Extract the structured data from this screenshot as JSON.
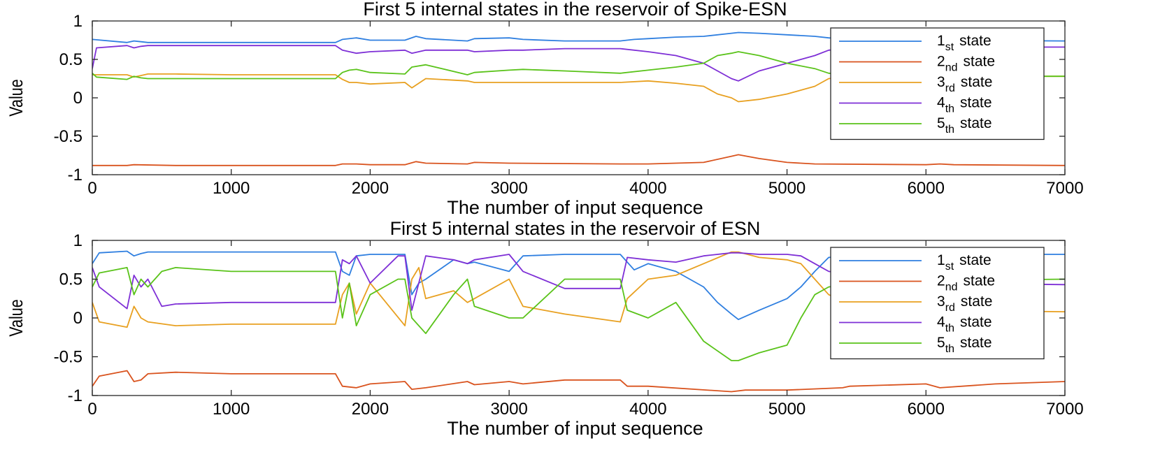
{
  "chart_data": [
    {
      "type": "line",
      "title": "First 5 internal states in the reservoir of Spike-ESN",
      "xlabel": "The number of input sequence",
      "ylabel": "Value",
      "xlim": [
        0,
        7000
      ],
      "ylim": [
        -1,
        1
      ],
      "xticks": [
        0,
        1000,
        2000,
        3000,
        4000,
        5000,
        6000,
        7000
      ],
      "yticks": [
        -1,
        -0.5,
        0,
        0.5,
        1
      ],
      "ytick_labels": [
        "-1",
        "-0.5",
        "0",
        "0.5",
        "1"
      ],
      "legend_position": "top-right",
      "grid": false,
      "series": [
        {
          "name": "1st state",
          "num": "1",
          "sub": "st",
          "word": "state",
          "color": "#2f7fe0",
          "x": [
            0,
            250,
            300,
            350,
            400,
            600,
            1000,
            1750,
            1800,
            1900,
            2000,
            2100,
            2250,
            2330,
            2400,
            2700,
            2750,
            3000,
            3100,
            3400,
            3800,
            3900,
            4000,
            4200,
            4400,
            4600,
            4650,
            4800,
            5000,
            5200,
            5300,
            5500,
            6000,
            7000
          ],
          "y": [
            0.76,
            0.72,
            0.74,
            0.73,
            0.72,
            0.72,
            0.72,
            0.72,
            0.76,
            0.78,
            0.75,
            0.75,
            0.75,
            0.8,
            0.77,
            0.74,
            0.77,
            0.78,
            0.76,
            0.74,
            0.74,
            0.76,
            0.77,
            0.79,
            0.8,
            0.84,
            0.85,
            0.84,
            0.82,
            0.8,
            0.78,
            0.76,
            0.75,
            0.74
          ]
        },
        {
          "name": "2nd state",
          "num": "2",
          "sub": "nd",
          "word": "state",
          "color": "#d9531e",
          "x": [
            0,
            250,
            300,
            600,
            1000,
            1750,
            1800,
            1900,
            2000,
            2250,
            2330,
            2400,
            2700,
            2750,
            3000,
            3800,
            4000,
            4400,
            4600,
            4650,
            4800,
            5000,
            5200,
            6000,
            6100,
            6200,
            7000
          ],
          "y": [
            -0.88,
            -0.88,
            -0.87,
            -0.88,
            -0.88,
            -0.88,
            -0.86,
            -0.86,
            -0.87,
            -0.87,
            -0.83,
            -0.85,
            -0.86,
            -0.84,
            -0.85,
            -0.86,
            -0.86,
            -0.84,
            -0.76,
            -0.74,
            -0.79,
            -0.84,
            -0.86,
            -0.87,
            -0.86,
            -0.87,
            -0.88
          ]
        },
        {
          "name": "3rd state",
          "num": "3",
          "sub": "rd",
          "word": "state",
          "color": "#e8a020",
          "x": [
            0,
            250,
            300,
            350,
            400,
            600,
            1000,
            1750,
            1800,
            1850,
            1900,
            2000,
            2250,
            2300,
            2400,
            2700,
            2750,
            3000,
            3100,
            3400,
            3800,
            4000,
            4200,
            4400,
            4500,
            4600,
            4650,
            4800,
            5000,
            5200,
            5300,
            5500,
            6000,
            7000
          ],
          "y": [
            0.3,
            0.3,
            0.27,
            0.29,
            0.31,
            0.31,
            0.3,
            0.3,
            0.24,
            0.2,
            0.2,
            0.18,
            0.2,
            0.13,
            0.25,
            0.22,
            0.2,
            0.2,
            0.2,
            0.2,
            0.2,
            0.22,
            0.19,
            0.15,
            0.05,
            0,
            -0.05,
            -0.02,
            0.05,
            0.15,
            0.25,
            0.28,
            0.28,
            0.28
          ]
        },
        {
          "name": "4th state",
          "num": "4",
          "sub": "th",
          "word": "state",
          "color": "#7e2fd6",
          "x": [
            0,
            30,
            250,
            300,
            350,
            400,
            600,
            1000,
            1750,
            1800,
            1850,
            1900,
            2000,
            2250,
            2300,
            2400,
            2700,
            2750,
            3000,
            3100,
            3400,
            3800,
            4000,
            4200,
            4300,
            4400,
            4500,
            4600,
            4650,
            4800,
            5000,
            5200,
            5300,
            5500,
            6000,
            7000
          ],
          "y": [
            0.38,
            0.65,
            0.68,
            0.65,
            0.67,
            0.68,
            0.68,
            0.68,
            0.68,
            0.62,
            0.6,
            0.58,
            0.6,
            0.62,
            0.58,
            0.62,
            0.62,
            0.6,
            0.62,
            0.62,
            0.64,
            0.64,
            0.6,
            0.55,
            0.5,
            0.45,
            0.35,
            0.25,
            0.22,
            0.35,
            0.45,
            0.55,
            0.62,
            0.65,
            0.66,
            0.66
          ]
        },
        {
          "name": "5th state",
          "num": "5",
          "sub": "th",
          "word": "state",
          "color": "#5ac31a",
          "x": [
            0,
            30,
            250,
            300,
            350,
            400,
            600,
            1000,
            1750,
            1800,
            1850,
            1900,
            2000,
            2250,
            2300,
            2400,
            2700,
            2750,
            3000,
            3100,
            3400,
            3800,
            4000,
            4200,
            4400,
            4500,
            4600,
            4650,
            4800,
            5000,
            5200,
            5300,
            5500,
            6000,
            7000
          ],
          "y": [
            0.32,
            0.27,
            0.24,
            0.28,
            0.26,
            0.25,
            0.25,
            0.25,
            0.25,
            0.33,
            0.36,
            0.37,
            0.33,
            0.31,
            0.4,
            0.43,
            0.3,
            0.33,
            0.36,
            0.37,
            0.35,
            0.32,
            0.36,
            0.4,
            0.45,
            0.55,
            0.58,
            0.6,
            0.55,
            0.45,
            0.38,
            0.32,
            0.3,
            0.28,
            0.28
          ]
        }
      ]
    },
    {
      "type": "line",
      "title": "First 5 internal states in the reservoir of ESN",
      "xlabel": "The number of input sequence",
      "ylabel": "Value",
      "xlim": [
        0,
        7000
      ],
      "ylim": [
        -1,
        1
      ],
      "xticks": [
        0,
        1000,
        2000,
        3000,
        4000,
        5000,
        6000,
        7000
      ],
      "yticks": [
        -1,
        -0.5,
        0,
        0.5,
        1
      ],
      "ytick_labels": [
        "-1",
        "-0.5",
        "0",
        "0.5",
        "1"
      ],
      "legend_position": "top-right",
      "grid": false,
      "series": [
        {
          "name": "1st state",
          "num": "1",
          "sub": "st",
          "word": "state",
          "color": "#2f7fe0",
          "x": [
            0,
            50,
            250,
            300,
            350,
            400,
            600,
            1000,
            1750,
            1800,
            1850,
            1900,
            2000,
            2250,
            2300,
            2350,
            2400,
            2600,
            2700,
            2750,
            3000,
            3100,
            3400,
            3800,
            3900,
            4000,
            4200,
            4400,
            4500,
            4600,
            4650,
            4800,
            5000,
            5100,
            5200,
            5300,
            5500,
            6000,
            7000
          ],
          "y": [
            0.7,
            0.84,
            0.86,
            0.8,
            0.83,
            0.85,
            0.85,
            0.85,
            0.85,
            0.6,
            0.55,
            0.8,
            0.82,
            0.82,
            0.3,
            0.45,
            0.5,
            0.75,
            0.7,
            0.72,
            0.6,
            0.8,
            0.82,
            0.82,
            0.62,
            0.7,
            0.6,
            0.4,
            0.2,
            0.05,
            -0.02,
            0.1,
            0.25,
            0.4,
            0.6,
            0.78,
            0.8,
            0.82,
            0.82
          ]
        },
        {
          "name": "2nd state",
          "num": "2",
          "sub": "nd",
          "word": "state",
          "color": "#d9531e",
          "x": [
            0,
            50,
            250,
            300,
            350,
            400,
            600,
            1000,
            1750,
            1800,
            1900,
            2000,
            2250,
            2300,
            2400,
            2700,
            2750,
            3000,
            3100,
            3400,
            3800,
            3850,
            4000,
            4600,
            4700,
            5000,
            5400,
            5450,
            6000,
            6100,
            6500,
            7000
          ],
          "y": [
            -0.88,
            -0.75,
            -0.68,
            -0.82,
            -0.8,
            -0.72,
            -0.7,
            -0.72,
            -0.72,
            -0.88,
            -0.9,
            -0.85,
            -0.82,
            -0.92,
            -0.9,
            -0.82,
            -0.86,
            -0.82,
            -0.85,
            -0.8,
            -0.8,
            -0.88,
            -0.88,
            -0.95,
            -0.93,
            -0.93,
            -0.9,
            -0.88,
            -0.85,
            -0.9,
            -0.85,
            -0.82
          ]
        },
        {
          "name": "3rd state",
          "num": "3",
          "sub": "rd",
          "word": "state",
          "color": "#e8a020",
          "x": [
            0,
            50,
            250,
            300,
            350,
            400,
            600,
            1000,
            1750,
            1800,
            1850,
            1900,
            2000,
            2250,
            2300,
            2350,
            2400,
            2600,
            2700,
            2750,
            3000,
            3100,
            3400,
            3800,
            3850,
            4000,
            4200,
            4400,
            4600,
            4650,
            4800,
            5000,
            5100,
            5200,
            5300,
            5500,
            6000,
            7000
          ],
          "y": [
            0.2,
            -0.05,
            -0.12,
            0.15,
            0.0,
            -0.05,
            -0.1,
            -0.08,
            -0.08,
            0.3,
            0.45,
            0.05,
            0.45,
            -0.1,
            0.5,
            0.65,
            0.25,
            0.35,
            0.2,
            0.25,
            0.5,
            0.15,
            0.05,
            -0.05,
            0.25,
            0.5,
            0.55,
            0.7,
            0.85,
            0.85,
            0.78,
            0.75,
            0.7,
            0.5,
            0.3,
            0.15,
            0.1,
            0.08
          ]
        },
        {
          "name": "4th state",
          "num": "4",
          "sub": "th",
          "word": "state",
          "color": "#7e2fd6",
          "x": [
            0,
            50,
            250,
            300,
            350,
            400,
            500,
            600,
            1000,
            1750,
            1800,
            1850,
            1900,
            2000,
            2200,
            2250,
            2300,
            2400,
            2600,
            2700,
            2750,
            3000,
            3100,
            3400,
            3800,
            3850,
            4000,
            4200,
            4400,
            4600,
            4650,
            4800,
            5000,
            5100,
            5200,
            5300,
            5500,
            6000,
            7000
          ],
          "y": [
            0.65,
            0.4,
            0.12,
            0.55,
            0.4,
            0.5,
            0.15,
            0.18,
            0.2,
            0.2,
            0.75,
            0.7,
            0.8,
            0.45,
            0.8,
            0.8,
            0.1,
            0.8,
            0.75,
            0.7,
            0.75,
            0.82,
            0.6,
            0.38,
            0.38,
            0.78,
            0.75,
            0.72,
            0.8,
            0.84,
            0.84,
            0.82,
            0.82,
            0.8,
            0.7,
            0.6,
            0.55,
            0.45,
            0.43
          ]
        },
        {
          "name": "5th state",
          "num": "5",
          "sub": "th",
          "word": "state",
          "color": "#5ac31a",
          "x": [
            0,
            50,
            250,
            300,
            350,
            400,
            500,
            600,
            1000,
            1750,
            1800,
            1850,
            1900,
            2000,
            2200,
            2250,
            2300,
            2400,
            2600,
            2700,
            2750,
            3000,
            3100,
            3400,
            3800,
            3850,
            4000,
            4200,
            4400,
            4600,
            4650,
            4800,
            5000,
            5100,
            5200,
            5300,
            5500,
            6000,
            7000
          ],
          "y": [
            0.4,
            0.58,
            0.65,
            0.3,
            0.5,
            0.4,
            0.6,
            0.65,
            0.6,
            0.6,
            0.0,
            0.45,
            -0.1,
            0.3,
            0.5,
            0.5,
            0.0,
            -0.2,
            0.3,
            0.5,
            0.15,
            0.0,
            0.0,
            0.5,
            0.5,
            0.1,
            0.0,
            0.2,
            -0.3,
            -0.55,
            -0.55,
            -0.45,
            -0.35,
            0.0,
            0.3,
            0.4,
            0.45,
            0.48,
            0.5
          ]
        }
      ]
    }
  ]
}
